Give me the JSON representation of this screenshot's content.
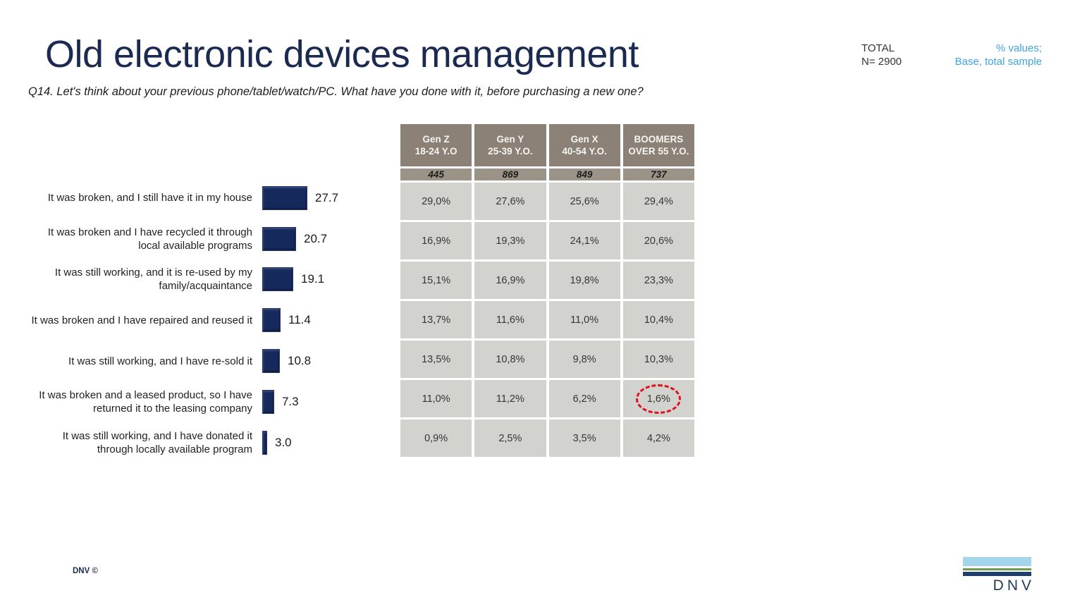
{
  "header": {
    "title": "Old electronic devices management",
    "question": "Q14. Let's think about your previous phone/tablet/watch/PC. What have you done with it, before purchasing a new one?"
  },
  "meta": {
    "total_label": "TOTAL",
    "n_label": "N= 2900",
    "note_line1": "% values;",
    "note_line2": "Base, total sample",
    "note_color": "#3fa5dc"
  },
  "chart_data": [
    {
      "type": "bar",
      "orientation": "horizontal",
      "title": "Old electronic devices management",
      "categories": [
        "It was broken, and I still have it in my house",
        "It was broken and I have recycled it through local available programs",
        "It was still working, and it is re-used by my family/acquaintance",
        "It was broken and I have repaired and reused it",
        "It was still working, and I have re-sold it",
        "It was broken and a leased product, so I have returned it to the leasing company",
        "It was still working, and I have donated it through locally available program"
      ],
      "values": [
        27.7,
        20.7,
        19.1,
        11.4,
        10.8,
        7.3,
        3.0
      ],
      "value_labels": [
        "27.7",
        "20.7",
        "19.1",
        "11.4",
        "10.8",
        "7.3",
        "3.0"
      ],
      "bar_color": "#16295c",
      "xlim": [
        0,
        30
      ],
      "grid": false,
      "legend": false
    },
    {
      "type": "table",
      "columns": [
        {
          "name": "Gen Z",
          "age": "18-24 Y.O",
          "base": "445"
        },
        {
          "name": "Gen Y",
          "age": "25-39 Y.O.",
          "base": "869"
        },
        {
          "name": "Gen X",
          "age": "40-54 Y.O.",
          "base": "849"
        },
        {
          "name": "BOOMERS",
          "age": "OVER 55 Y.O.",
          "base": "737"
        }
      ],
      "rows": [
        [
          "29,0%",
          "27,6%",
          "25,6%",
          "29,4%"
        ],
        [
          "16,9%",
          "19,3%",
          "24,1%",
          "20,6%"
        ],
        [
          "15,1%",
          "16,9%",
          "19,8%",
          "23,3%"
        ],
        [
          "13,7%",
          "11,6%",
          "11,0%",
          "10,4%"
        ],
        [
          "13,5%",
          "10,8%",
          "9,8%",
          "10,3%"
        ],
        [
          "11,0%",
          "11,2%",
          "6,2%",
          "1,6%"
        ],
        [
          "0,9%",
          "2,5%",
          "3,5%",
          "4,2%"
        ]
      ],
      "highlight": {
        "row_index": 5,
        "col_index": 3,
        "value": "1,6%",
        "marker": "red-dashed-ellipse",
        "marker_color": "#e0101e"
      },
      "header_bg": "#8b8177",
      "base_row_bg": "#9c9388",
      "cell_bg": "#d2d2cf"
    }
  ],
  "footer": {
    "copyright": "DNV ©",
    "logo_text": "DNV"
  }
}
